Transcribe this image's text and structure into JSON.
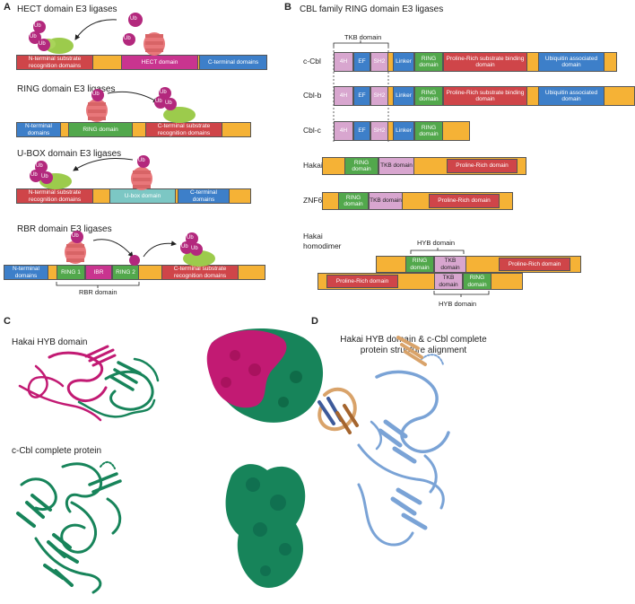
{
  "panels": {
    "a": "A",
    "b": "B",
    "c": "C",
    "d": "D"
  },
  "colors": {
    "orange": "#f5b236",
    "red": "#cf4549",
    "magenta": "#c9348f",
    "blue": "#3d7fc9",
    "green": "#52a84c",
    "teal": "#7cc7c4",
    "pink": "#d8a6cf",
    "ub": "#b3287d",
    "ligase": "#e8777a",
    "substrate": "#9ccb4c",
    "protein_green": "#17845a",
    "protein_magenta": "#c21a73",
    "protein_blue": "#7aa3d6",
    "protein_tan": "#d9a36a"
  },
  "a": {
    "hect": {
      "title": "HECT domain E3 ligases",
      "nterm": "N-terminal substrate recognition domains",
      "hect": "HECT domain",
      "cterm": "C-terminal domains"
    },
    "ring": {
      "title": "RING domain E3 ligases",
      "nterm": "N-terminal domains",
      "ring": "RING domain",
      "cterm": "C-terminal substrate recognition domains"
    },
    "ubox": {
      "title": "U-BOX domain E3 ligases",
      "nterm": "N-terminal substrate recognition domains",
      "ubox": "U-box domain",
      "cterm": "C-terminal domains"
    },
    "rbr": {
      "title": "RBR domain E3 ligases",
      "nterm": "N-terminal domains",
      "ring1": "RING 1",
      "ibr": "IBR",
      "ring2": "RING 2",
      "cterm": "C-terminal substrate recognition domains",
      "bracket": "RBR domain"
    },
    "ub": "Ub"
  },
  "b": {
    "title": "CBL family RING domain E3 ligases",
    "tkb_label": "TKB domain",
    "names": [
      "c-Cbl",
      "Cbl-b",
      "Cbl-c",
      "Hakai",
      "ZNF645"
    ],
    "homodimer_name": "Hakai homodimer",
    "d4h": "4H",
    "ef": "EF",
    "sh2": "SH2",
    "linker": "Linker",
    "ring": "RING domain",
    "proline_sub": "Proline-Rich substrate binding domain",
    "ubiq": "Ubiquitin associated domain",
    "tkb": "TKB domain",
    "proline": "Proline-Rich domain",
    "hyb_top": "HYB domain",
    "hyb_bottom": "HYB domain"
  },
  "c": {
    "hyb_title": "Hakai HYB domain",
    "ccbl_title": "c-Cbl complete protein"
  },
  "d": {
    "title": "Hakai HYB domain & c-Cbl complete protein structure alignment"
  }
}
